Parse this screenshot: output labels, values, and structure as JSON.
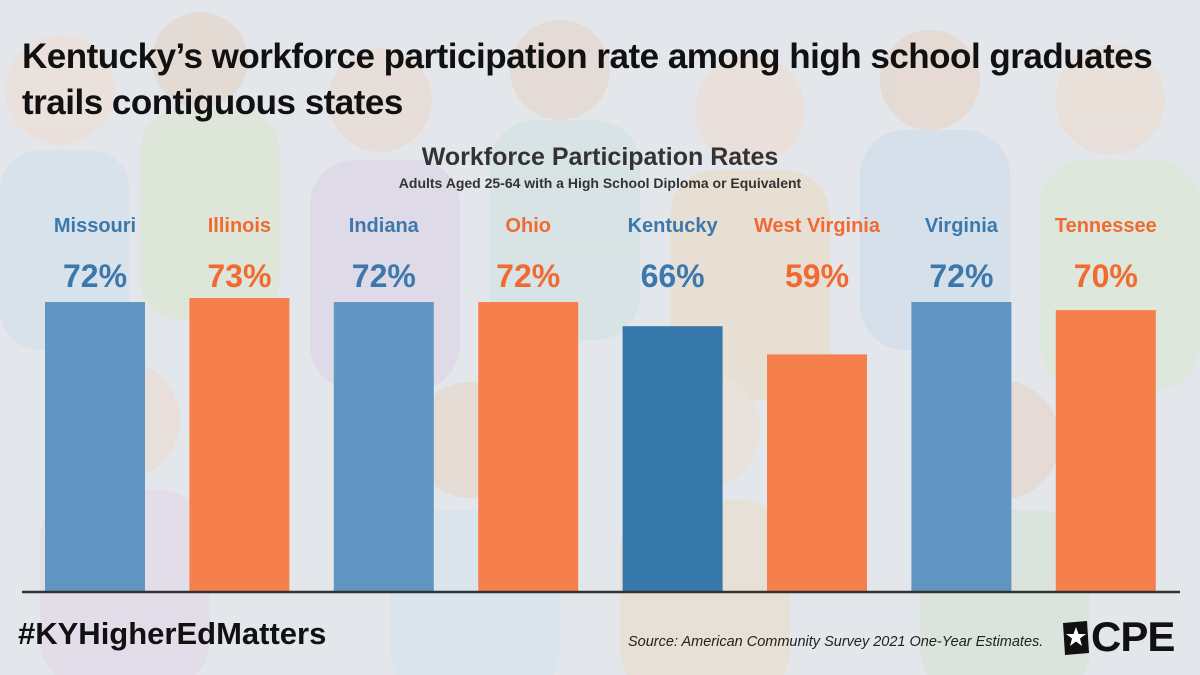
{
  "headline": "Kentucky’s workforce participation rate among high school graduates trails contiguous states",
  "footer": {
    "hashtag": "#KYHigherEdMatters",
    "source": "Source: American Community Survey 2021 One-Year Estimates.",
    "logo_text": "CPE"
  },
  "colors": {
    "blue": "#6096c1",
    "orange": "#f5804e",
    "kentucky": "#3778ab",
    "blue_label": "#3d78ad",
    "orange_label": "#f06a32"
  },
  "chart_data": {
    "type": "bar",
    "title": "Workforce Participation Rates",
    "subtitle": "Adults Aged 25-64 with a High School Diploma or Equivalent",
    "categories": [
      "Missouri",
      "Illinois",
      "Indiana",
      "Ohio",
      "Kentucky",
      "West Virginia",
      "Virginia",
      "Tennessee"
    ],
    "values": [
      72,
      73,
      72,
      72,
      66,
      59,
      72,
      70
    ],
    "data_labels": [
      "72%",
      "73%",
      "72%",
      "72%",
      "66%",
      "59%",
      "72%",
      "70%"
    ],
    "color_keys": [
      "blue",
      "orange",
      "blue",
      "orange",
      "kentucky",
      "orange",
      "blue",
      "orange"
    ],
    "label_color_keys": [
      "blue_label",
      "orange_label",
      "blue_label",
      "orange_label",
      "blue_label",
      "orange_label",
      "blue_label",
      "orange_label"
    ],
    "xlabel": "",
    "ylabel": "",
    "ylim": [
      0,
      73
    ],
    "grid": false,
    "legend": "none"
  }
}
